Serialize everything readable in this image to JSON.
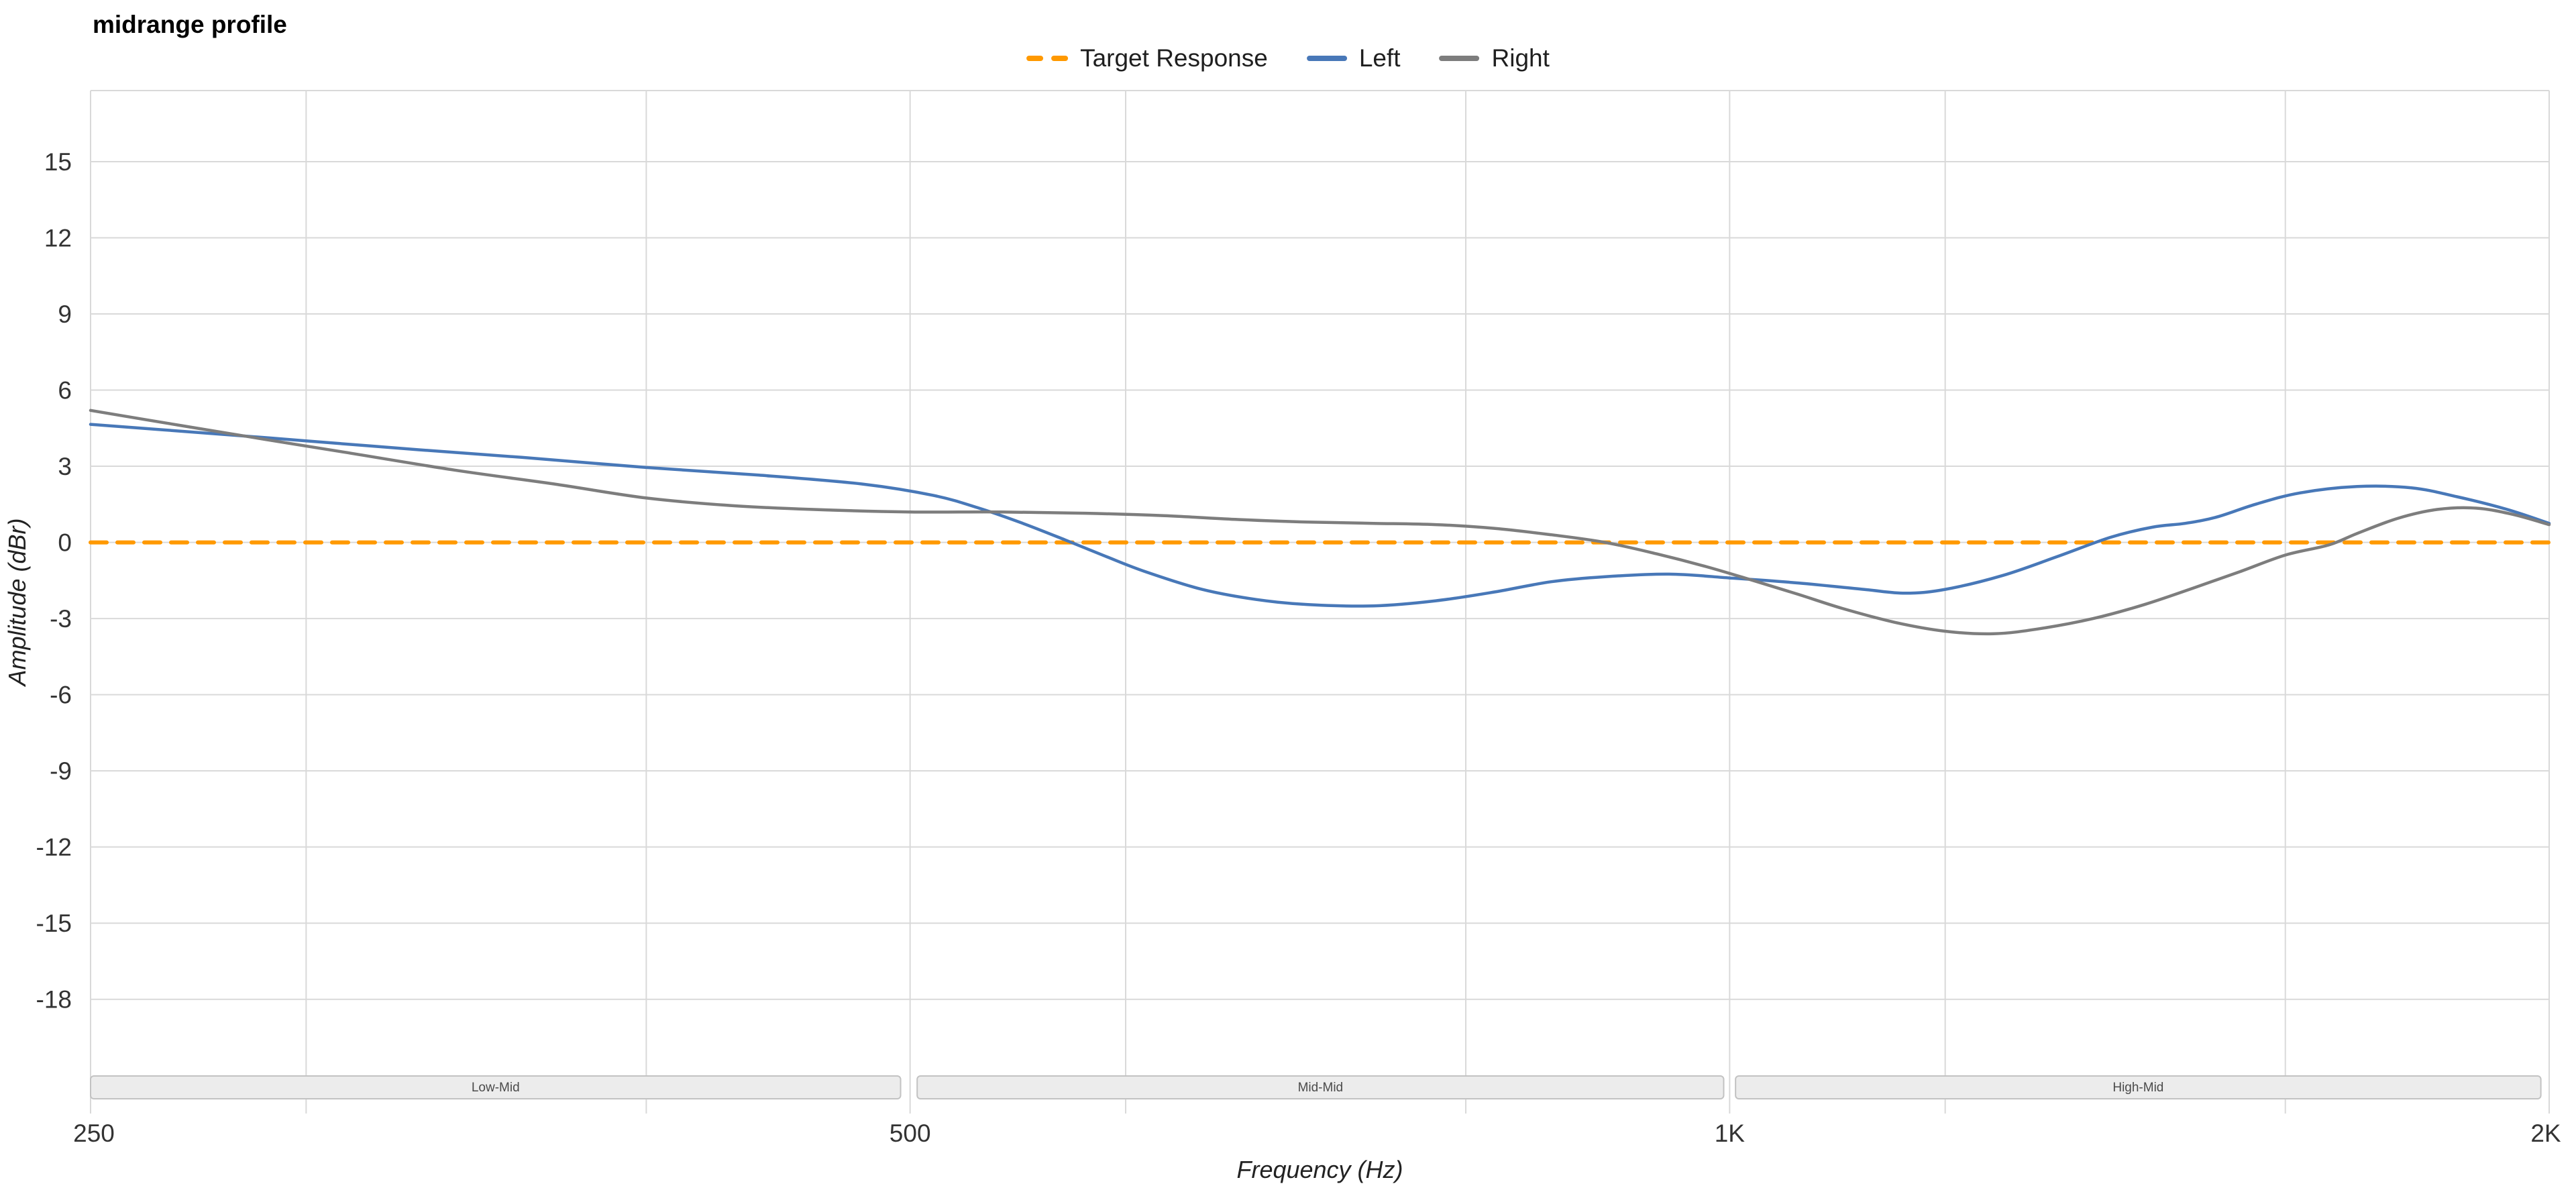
{
  "title": "midrange profile",
  "legend": [
    {
      "label": "Target Response",
      "color": "#ff9900",
      "style": "dashed"
    },
    {
      "label": "Left",
      "color": "#4878b8",
      "style": "solid"
    },
    {
      "label": "Right",
      "color": "#7d7d7d",
      "style": "solid"
    }
  ],
  "chart_data": {
    "type": "line",
    "title": "midrange profile",
    "xlabel": "Frequency (Hz)",
    "ylabel": "Amplitude (dBr)",
    "x_scale": "log",
    "xlim": [
      250,
      2000
    ],
    "ylim": [
      -22.5,
      17.8
    ],
    "yticks": [
      15,
      12,
      9,
      6,
      3,
      0,
      -3,
      -6,
      -9,
      -12,
      -15,
      -18
    ],
    "xticks": [
      {
        "value": 250,
        "label": "250"
      },
      {
        "value": 500,
        "label": "500"
      },
      {
        "value": 1000,
        "label": "1K"
      },
      {
        "value": 2000,
        "label": "2K"
      }
    ],
    "x_gridlines": [
      250,
      300,
      400,
      500,
      600,
      800,
      1000,
      1200,
      1600,
      2000
    ],
    "grid_color": "#d9d9d9",
    "bands": [
      {
        "label": "Low-Mid",
        "from": 250,
        "to": 496
      },
      {
        "label": "Mid-Mid",
        "from": 503,
        "to": 995
      },
      {
        "label": "High-Mid",
        "from": 1005,
        "to": 1986
      }
    ],
    "series": [
      {
        "name": "Target Response",
        "color": "#ff9900",
        "width": 6,
        "dash": [
          24,
          16
        ],
        "points": [
          [
            250,
            0
          ],
          [
            2000,
            0
          ]
        ]
      },
      {
        "name": "Left",
        "color": "#4878b8",
        "width": 4.5,
        "points": [
          [
            250,
            4.65
          ],
          [
            280,
            4.25
          ],
          [
            300,
            4.0
          ],
          [
            330,
            3.65
          ],
          [
            360,
            3.35
          ],
          [
            400,
            2.95
          ],
          [
            440,
            2.65
          ],
          [
            480,
            2.3
          ],
          [
            510,
            1.85
          ],
          [
            530,
            1.35
          ],
          [
            550,
            0.75
          ],
          [
            570,
            0.1
          ],
          [
            590,
            -0.55
          ],
          [
            610,
            -1.15
          ],
          [
            640,
            -1.85
          ],
          [
            670,
            -2.25
          ],
          [
            700,
            -2.45
          ],
          [
            740,
            -2.5
          ],
          [
            780,
            -2.3
          ],
          [
            820,
            -1.95
          ],
          [
            860,
            -1.55
          ],
          [
            900,
            -1.35
          ],
          [
            950,
            -1.25
          ],
          [
            1000,
            -1.4
          ],
          [
            1060,
            -1.6
          ],
          [
            1120,
            -1.85
          ],
          [
            1160,
            -2.0
          ],
          [
            1200,
            -1.85
          ],
          [
            1260,
            -1.3
          ],
          [
            1320,
            -0.55
          ],
          [
            1380,
            0.2
          ],
          [
            1430,
            0.6
          ],
          [
            1470,
            0.75
          ],
          [
            1510,
            1.0
          ],
          [
            1560,
            1.5
          ],
          [
            1620,
            1.95
          ],
          [
            1700,
            2.2
          ],
          [
            1780,
            2.15
          ],
          [
            1850,
            1.8
          ],
          [
            1930,
            1.3
          ],
          [
            2000,
            0.75
          ]
        ]
      },
      {
        "name": "Right",
        "color": "#7d7d7d",
        "width": 4.5,
        "points": [
          [
            250,
            5.2
          ],
          [
            270,
            4.6
          ],
          [
            290,
            4.05
          ],
          [
            310,
            3.55
          ],
          [
            340,
            2.85
          ],
          [
            370,
            2.3
          ],
          [
            400,
            1.75
          ],
          [
            430,
            1.45
          ],
          [
            460,
            1.3
          ],
          [
            500,
            1.2
          ],
          [
            540,
            1.2
          ],
          [
            580,
            1.15
          ],
          [
            620,
            1.05
          ],
          [
            660,
            0.9
          ],
          [
            700,
            0.8
          ],
          [
            740,
            0.75
          ],
          [
            780,
            0.7
          ],
          [
            820,
            0.55
          ],
          [
            860,
            0.3
          ],
          [
            900,
            0.0
          ],
          [
            940,
            -0.45
          ],
          [
            980,
            -0.95
          ],
          [
            1020,
            -1.5
          ],
          [
            1060,
            -2.05
          ],
          [
            1100,
            -2.6
          ],
          [
            1150,
            -3.15
          ],
          [
            1200,
            -3.5
          ],
          [
            1250,
            -3.6
          ],
          [
            1300,
            -3.4
          ],
          [
            1360,
            -3.0
          ],
          [
            1420,
            -2.45
          ],
          [
            1480,
            -1.8
          ],
          [
            1540,
            -1.15
          ],
          [
            1600,
            -0.5
          ],
          [
            1660,
            -0.1
          ],
          [
            1700,
            0.35
          ],
          [
            1760,
            0.95
          ],
          [
            1820,
            1.3
          ],
          [
            1880,
            1.35
          ],
          [
            1940,
            1.1
          ],
          [
            2000,
            0.7
          ]
        ]
      }
    ]
  }
}
